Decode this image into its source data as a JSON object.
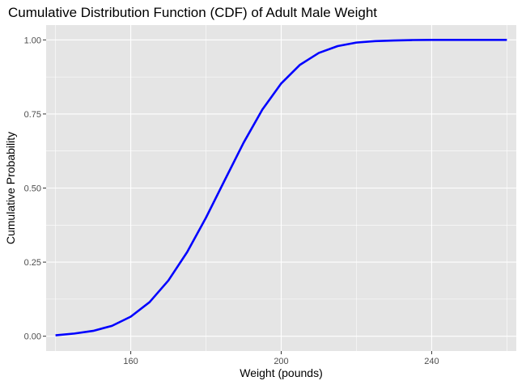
{
  "chart_data": {
    "type": "line",
    "title": "Cumulative Distribution Function (CDF) of Adult Male Weight",
    "xlabel": "Weight (pounds)",
    "ylabel": "Cumulative Probability",
    "xlim": [
      137.5,
      262.5
    ],
    "ylim": [
      -0.05,
      1.05
    ],
    "x_ticks": [
      160,
      200,
      240
    ],
    "x_tick_labels": [
      "160",
      "200",
      "240"
    ],
    "y_ticks": [
      0,
      0.25,
      0.5,
      0.75,
      1.0
    ],
    "y_tick_labels": [
      "0.00",
      "0.25",
      "0.50",
      "0.75",
      "1.00"
    ],
    "x_minor_ticks": [
      140,
      180,
      220,
      260
    ],
    "y_minor_ticks": [
      0.125,
      0.375,
      0.625,
      0.875
    ],
    "grid": true,
    "legend": "none",
    "line_color": "#0000ff",
    "panel_background": "#e5e5e5",
    "grid_color": "#ffffff",
    "series": [
      {
        "x": [
          140,
          145,
          150,
          155,
          160,
          165,
          170,
          175,
          180,
          185,
          190,
          195,
          200,
          205,
          210,
          215,
          220,
          225,
          230,
          235,
          240,
          245,
          250,
          255,
          260
        ],
        "values": [
          0.003,
          0.009,
          0.018,
          0.035,
          0.066,
          0.115,
          0.188,
          0.284,
          0.4,
          0.527,
          0.653,
          0.765,
          0.853,
          0.916,
          0.956,
          0.979,
          0.991,
          0.996,
          0.998,
          0.9995,
          0.9999,
          1.0,
          1.0,
          1.0,
          1.0
        ]
      }
    ]
  }
}
